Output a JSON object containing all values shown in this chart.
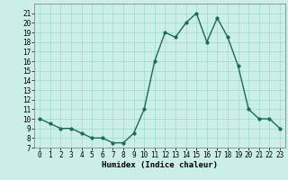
{
  "x": [
    0,
    1,
    2,
    3,
    4,
    5,
    6,
    7,
    8,
    9,
    10,
    11,
    12,
    13,
    14,
    15,
    16,
    17,
    18,
    19,
    20,
    21,
    22,
    23
  ],
  "y": [
    10,
    9.5,
    9,
    9,
    8.5,
    8,
    8,
    7.5,
    7.5,
    8.5,
    11,
    16,
    19,
    18.5,
    20,
    21,
    18,
    20.5,
    18.5,
    15.5,
    11,
    10,
    10,
    9
  ],
  "line_color": "#1a6b5a",
  "marker": "o",
  "marker_size": 2,
  "bg_color": "#cceee8",
  "grid_color": "#99ddcc",
  "xlabel": "Humidex (Indice chaleur)",
  "ylabel": "",
  "xlim": [
    -0.5,
    23.5
  ],
  "ylim": [
    7,
    22
  ],
  "yticks": [
    7,
    8,
    9,
    10,
    11,
    12,
    13,
    14,
    15,
    16,
    17,
    18,
    19,
    20,
    21
  ],
  "xticks": [
    0,
    1,
    2,
    3,
    4,
    5,
    6,
    7,
    8,
    9,
    10,
    11,
    12,
    13,
    14,
    15,
    16,
    17,
    18,
    19,
    20,
    21,
    22,
    23
  ],
  "xlabel_fontsize": 6.5,
  "tick_fontsize": 5.5,
  "linewidth": 1.0
}
